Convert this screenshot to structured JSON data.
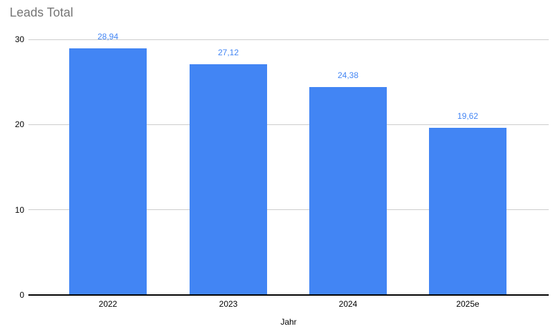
{
  "chart_data": {
    "type": "bar",
    "title": "Leads Total",
    "xlabel": "Jahr",
    "ylabel": "",
    "categories": [
      "2022",
      "2023",
      "2024",
      "2025e"
    ],
    "values": [
      28.94,
      27.12,
      24.38,
      19.62
    ],
    "value_labels": [
      "28,94",
      "27,12",
      "24,38",
      "19,62"
    ],
    "yticks": [
      0,
      10,
      20,
      30
    ],
    "ytick_labels": [
      "0",
      "10",
      "20",
      "30"
    ],
    "ylim": [
      0,
      30
    ],
    "grid": true,
    "legend": "none",
    "colors": {
      "bar": "#4285f4",
      "data_label": "#4285f4",
      "title": "#757575",
      "axis_text": "#000000",
      "gridline": "#cccccc",
      "baseline": "#000000",
      "background": "#ffffff"
    }
  }
}
